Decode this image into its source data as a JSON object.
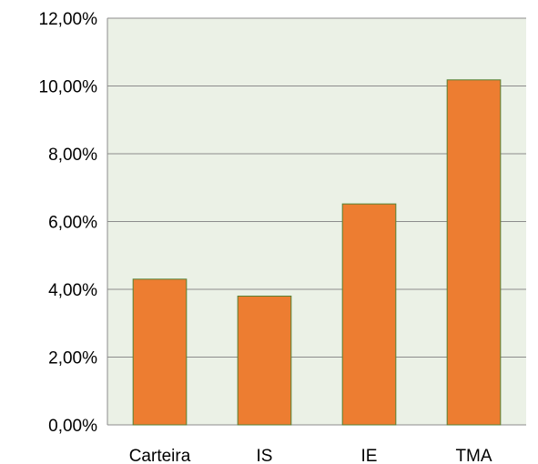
{
  "chart_data": {
    "type": "bar",
    "categories": [
      "Carteira",
      "IS",
      "IE",
      "TMA"
    ],
    "values": [
      4.3,
      3.8,
      6.52,
      10.18
    ],
    "ylim": [
      0,
      12
    ],
    "yticks": [
      0,
      2,
      4,
      6,
      8,
      10,
      12
    ],
    "ytick_labels": [
      "0,00%",
      "2,00%",
      "4,00%",
      "6,00%",
      "8,00%",
      "10,00%",
      "12,00%"
    ],
    "grid": true,
    "legend": "none",
    "colors": {
      "bar_fill": "#ED7D31",
      "bar_stroke": "#548235",
      "plot_bg": "#EBF1E6",
      "gridline": "#8C8C8C"
    }
  }
}
